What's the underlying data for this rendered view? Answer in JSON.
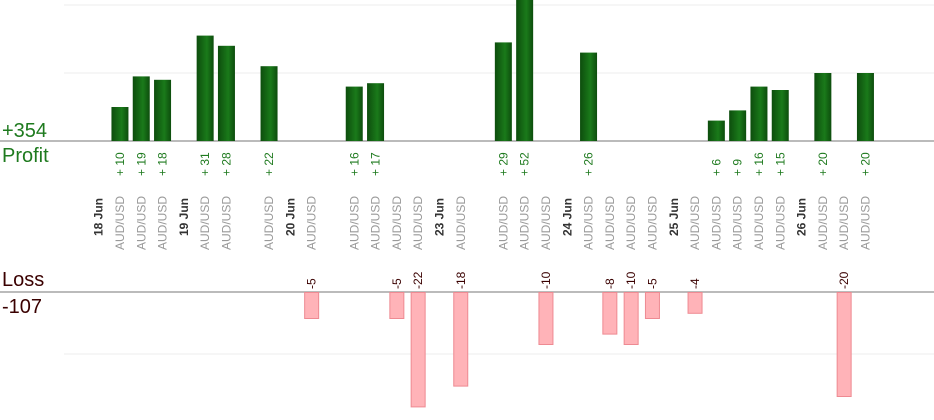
{
  "summary": {
    "profit_total": "+354",
    "profit_label": "Profit",
    "loss_label": "Loss",
    "loss_total": "-107"
  },
  "colors": {
    "profit_text": "#1e7a1e",
    "profit_bar_dark": "#0d4d0d",
    "profit_bar_light": "#1a7a1a",
    "loss_text": "#3a0000",
    "loss_bar": "#ffb3b8",
    "loss_bar_border": "#ee8a92",
    "day_label": "#333333",
    "pair_label": "#999999",
    "axis": "#777777",
    "grid": "#eeeeee"
  },
  "chart_data": {
    "type": "bar",
    "pair": "AUD/USD",
    "days": [
      "18 Jun",
      "19 Jun",
      "20 Jun",
      "23 Jun",
      "24 Jun",
      "25 Jun",
      "26 Jun"
    ],
    "entries": [
      {
        "day": "18 Jun",
        "trades": [
          10,
          19,
          18
        ]
      },
      {
        "day": "19 Jun",
        "trades": [
          31,
          28,
          null,
          22
        ]
      },
      {
        "day": "20 Jun",
        "trades": [
          -5,
          null,
          16,
          17,
          -5,
          -22
        ]
      },
      {
        "day": "23 Jun",
        "trades": [
          -18,
          null,
          29,
          52,
          -10
        ]
      },
      {
        "day": "24 Jun",
        "trades": [
          26,
          -8,
          -10,
          -5
        ]
      },
      {
        "day": "25 Jun",
        "trades": [
          -4,
          6,
          9,
          16,
          15
        ]
      },
      {
        "day": "26 Jun",
        "trades": [
          20,
          -20,
          20
        ]
      }
    ]
  }
}
